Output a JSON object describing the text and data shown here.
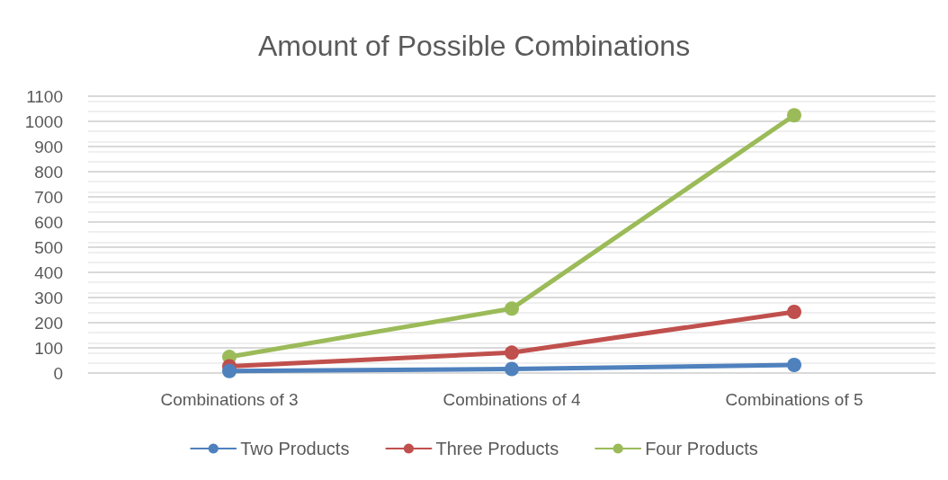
{
  "chart_data": {
    "type": "line",
    "title": "Amount of Possible Combinations",
    "categories": [
      "Combinations of 3",
      "Combinations of 4",
      "Combinations of 5"
    ],
    "series": [
      {
        "name": "Two Products",
        "color": "#4f81bd",
        "values": [
          8,
          16,
          32
        ]
      },
      {
        "name": "Three Products",
        "color": "#c0504d",
        "values": [
          27,
          81,
          243
        ]
      },
      {
        "name": "Four Products",
        "color": "#9bbb59",
        "values": [
          64,
          256,
          1024
        ]
      }
    ],
    "ylim": [
      0,
      1100
    ],
    "yticks": [
      0,
      100,
      200,
      300,
      400,
      500,
      600,
      700,
      800,
      900,
      1000,
      1100
    ],
    "grid": "y",
    "legend": "bottom",
    "marker": "circle",
    "line_style": "solid"
  }
}
